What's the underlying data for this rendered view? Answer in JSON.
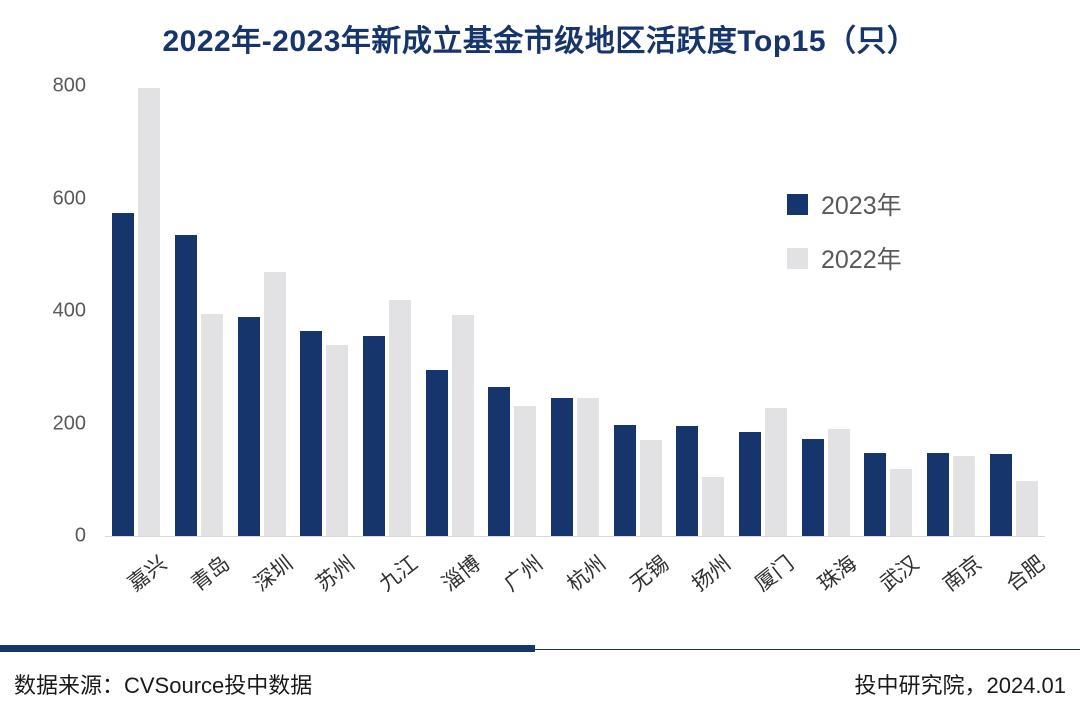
{
  "title": "2022年-2023年新成立基金市级地区活跃度Top15（只）",
  "colors": {
    "series_2023": "#16356d",
    "series_2022": "#e2e2e4",
    "axis_text": "#595959",
    "category_text": "#303030",
    "title_text": "#16356d",
    "divider": "#16356d"
  },
  "footer": {
    "source": "数据来源：CVSource投中数据",
    "publisher": "投中研究院，2024.01"
  },
  "chart_data": {
    "type": "bar",
    "title": "2022年-2023年新成立基金市级地区活跃度Top15（只）",
    "xlabel": "",
    "ylabel": "",
    "categories": [
      "嘉兴",
      "青岛",
      "深圳",
      "苏州",
      "九江",
      "淄博",
      "广州",
      "杭州",
      "无锡",
      "扬州",
      "厦门",
      "珠海",
      "武汉",
      "南京",
      "合肥"
    ],
    "series": [
      {
        "name": "2023年",
        "color": "#16356d",
        "values": [
          575,
          535,
          390,
          365,
          355,
          295,
          265,
          245,
          198,
          196,
          185,
          172,
          148,
          147,
          146
        ]
      },
      {
        "name": "2022年",
        "color": "#e2e2e4",
        "values": [
          797,
          395,
          470,
          340,
          420,
          393,
          232,
          246,
          170,
          105,
          228,
          190,
          120,
          142,
          97
        ]
      }
    ],
    "ylim": [
      0,
      800
    ],
    "yticks": [
      0,
      200,
      400,
      600,
      800
    ],
    "grid": false,
    "legend_position": "upper right"
  }
}
